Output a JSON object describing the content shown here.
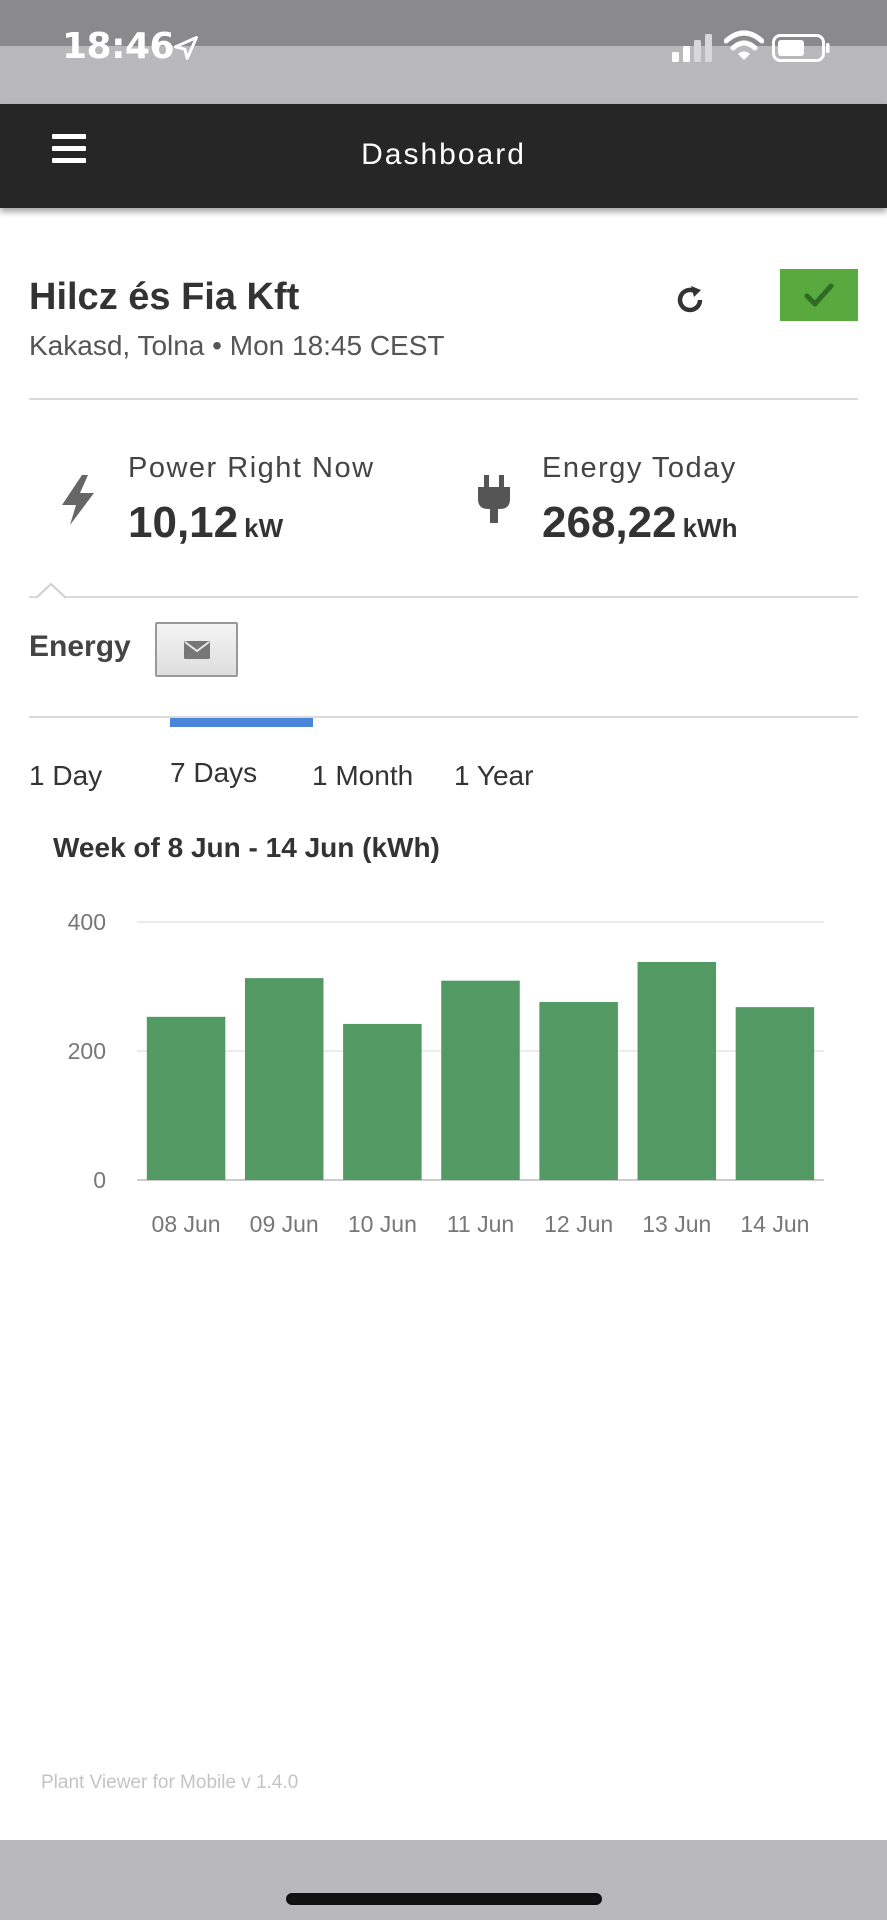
{
  "status_bar": {
    "time": "18:46"
  },
  "nav": {
    "title": "Dashboard"
  },
  "plant": {
    "name": "Hilcz és Fia Kft",
    "subtitle": "Kakasd, Tolna • Mon 18:45 CEST",
    "status_color": "#58a93e"
  },
  "kpis": {
    "power": {
      "label": "Power Right Now",
      "value": "10,12",
      "unit": "kW",
      "icon": "lightning-icon"
    },
    "energy": {
      "label": "Energy Today",
      "value": "268,22",
      "unit": "kWh",
      "icon": "plug-icon"
    }
  },
  "energy_section": {
    "label": "Energy"
  },
  "tabs": [
    {
      "label": "1 Day"
    },
    {
      "label": "7 Days",
      "active": true
    },
    {
      "label": "1 Month"
    },
    {
      "label": "1 Year"
    }
  ],
  "chart_data": {
    "type": "bar",
    "title": "Week of 8 Jun - 14 Jun (kWh)",
    "categories": [
      "08 Jun",
      "09 Jun",
      "10 Jun",
      "11 Jun",
      "12 Jun",
      "13 Jun",
      "14 Jun"
    ],
    "values": [
      253,
      313,
      242,
      309,
      276,
      338,
      268
    ],
    "ylim": [
      0,
      400
    ],
    "yticks": [
      0,
      200,
      400
    ],
    "bar_color": "#539963",
    "grid": true
  },
  "footer": {
    "version": "Plant Viewer for Mobile v 1.4.0"
  }
}
